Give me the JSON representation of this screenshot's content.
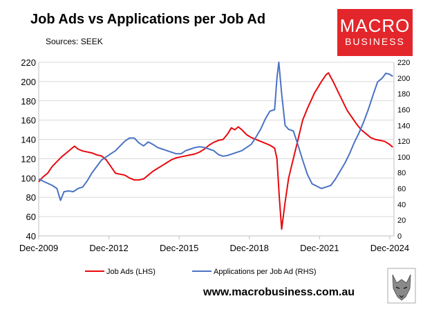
{
  "header": {
    "title": "Job Ads vs Applications per Job Ad",
    "source": "Sources: SEEK"
  },
  "logo": {
    "line1": "MACRO",
    "line2": "BUSINESS"
  },
  "footer": {
    "website": "www.macrobusiness.com.au"
  },
  "colors": {
    "job_ads": "#e8080c",
    "applications": "#4a72c4",
    "grid": "#d9d9d9",
    "logo_bg": "#e3262b"
  },
  "chart_data": {
    "type": "line",
    "x_range": [
      2009.92,
      2025.1
    ],
    "x_tick_labels": [
      "Dec-2009",
      "Dec-2012",
      "Dec-2015",
      "Dec-2018",
      "Dec-2021",
      "Dec-2024"
    ],
    "x_tick_values": [
      2009.92,
      2012.92,
      2015.92,
      2018.92,
      2021.92,
      2024.92
    ],
    "y_left_range": [
      40,
      220
    ],
    "y_left_ticks": [
      40,
      60,
      80,
      100,
      120,
      140,
      160,
      180,
      200,
      220
    ],
    "y_right_range": [
      0,
      220
    ],
    "y_right_ticks": [
      0,
      20,
      40,
      60,
      80,
      100,
      120,
      140,
      160,
      180,
      200,
      220
    ],
    "grid": "horizontal",
    "legend_placement": "bottom",
    "series": [
      {
        "name": "Job Ads (LHS)",
        "axis": "left",
        "points": [
          [
            2009.92,
            96
          ],
          [
            2010.1,
            101
          ],
          [
            2010.3,
            105
          ],
          [
            2010.5,
            112
          ],
          [
            2010.7,
            117
          ],
          [
            2010.9,
            122
          ],
          [
            2011.1,
            126
          ],
          [
            2011.3,
            130
          ],
          [
            2011.45,
            133
          ],
          [
            2011.6,
            130
          ],
          [
            2011.8,
            128
          ],
          [
            2012.0,
            127
          ],
          [
            2012.2,
            126
          ],
          [
            2012.4,
            124
          ],
          [
            2012.6,
            123
          ],
          [
            2012.8,
            119
          ],
          [
            2013.0,
            112
          ],
          [
            2013.2,
            105
          ],
          [
            2013.4,
            104
          ],
          [
            2013.6,
            103
          ],
          [
            2013.8,
            100
          ],
          [
            2014.0,
            98
          ],
          [
            2014.2,
            98
          ],
          [
            2014.4,
            99
          ],
          [
            2014.6,
            103
          ],
          [
            2014.8,
            107
          ],
          [
            2015.0,
            110
          ],
          [
            2015.2,
            113
          ],
          [
            2015.4,
            116
          ],
          [
            2015.6,
            119
          ],
          [
            2015.8,
            121
          ],
          [
            2016.0,
            122
          ],
          [
            2016.2,
            123
          ],
          [
            2016.4,
            124
          ],
          [
            2016.6,
            125
          ],
          [
            2016.8,
            127
          ],
          [
            2017.0,
            130
          ],
          [
            2017.2,
            134
          ],
          [
            2017.4,
            137
          ],
          [
            2017.6,
            139
          ],
          [
            2017.8,
            140
          ],
          [
            2018.0,
            146
          ],
          [
            2018.15,
            152
          ],
          [
            2018.3,
            150
          ],
          [
            2018.45,
            153
          ],
          [
            2018.6,
            150
          ],
          [
            2018.8,
            145
          ],
          [
            2019.0,
            142
          ],
          [
            2019.2,
            140
          ],
          [
            2019.4,
            138
          ],
          [
            2019.6,
            136
          ],
          [
            2019.8,
            134
          ],
          [
            2020.0,
            131
          ],
          [
            2020.1,
            120
          ],
          [
            2020.2,
            80
          ],
          [
            2020.3,
            47
          ],
          [
            2020.45,
            75
          ],
          [
            2020.6,
            100
          ],
          [
            2020.8,
            120
          ],
          [
            2021.0,
            140
          ],
          [
            2021.2,
            160
          ],
          [
            2021.4,
            172
          ],
          [
            2021.55,
            180
          ],
          [
            2021.7,
            188
          ],
          [
            2021.85,
            194
          ],
          [
            2022.0,
            200
          ],
          [
            2022.2,
            207
          ],
          [
            2022.3,
            209
          ],
          [
            2022.5,
            200
          ],
          [
            2022.7,
            190
          ],
          [
            2022.9,
            180
          ],
          [
            2023.1,
            170
          ],
          [
            2023.3,
            163
          ],
          [
            2023.5,
            156
          ],
          [
            2023.7,
            150
          ],
          [
            2023.9,
            146
          ],
          [
            2024.1,
            142
          ],
          [
            2024.3,
            140
          ],
          [
            2024.5,
            139
          ],
          [
            2024.7,
            138
          ],
          [
            2024.9,
            135
          ],
          [
            2025.05,
            132
          ]
        ]
      },
      {
        "name": "Applications per Job Ad (RHS)",
        "axis": "right",
        "points": [
          [
            2009.92,
            72
          ],
          [
            2010.2,
            68
          ],
          [
            2010.5,
            64
          ],
          [
            2010.7,
            60
          ],
          [
            2010.85,
            45
          ],
          [
            2011.0,
            56
          ],
          [
            2011.2,
            57
          ],
          [
            2011.4,
            56
          ],
          [
            2011.6,
            60
          ],
          [
            2011.8,
            62
          ],
          [
            2012.0,
            70
          ],
          [
            2012.2,
            80
          ],
          [
            2012.4,
            88
          ],
          [
            2012.6,
            96
          ],
          [
            2012.8,
            100
          ],
          [
            2013.0,
            104
          ],
          [
            2013.2,
            108
          ],
          [
            2013.4,
            114
          ],
          [
            2013.6,
            120
          ],
          [
            2013.8,
            124
          ],
          [
            2014.0,
            124
          ],
          [
            2014.2,
            118
          ],
          [
            2014.4,
            114
          ],
          [
            2014.6,
            119
          ],
          [
            2014.8,
            116
          ],
          [
            2015.0,
            112
          ],
          [
            2015.2,
            110
          ],
          [
            2015.4,
            108
          ],
          [
            2015.6,
            106
          ],
          [
            2015.8,
            104
          ],
          [
            2016.0,
            104
          ],
          [
            2016.2,
            108
          ],
          [
            2016.4,
            110
          ],
          [
            2016.6,
            112
          ],
          [
            2016.8,
            113
          ],
          [
            2017.0,
            112
          ],
          [
            2017.2,
            110
          ],
          [
            2017.4,
            108
          ],
          [
            2017.6,
            103
          ],
          [
            2017.8,
            101
          ],
          [
            2018.0,
            102
          ],
          [
            2018.2,
            104
          ],
          [
            2018.4,
            106
          ],
          [
            2018.6,
            108
          ],
          [
            2018.8,
            112
          ],
          [
            2019.0,
            116
          ],
          [
            2019.2,
            125
          ],
          [
            2019.4,
            135
          ],
          [
            2019.6,
            148
          ],
          [
            2019.8,
            158
          ],
          [
            2020.0,
            160
          ],
          [
            2020.1,
            200
          ],
          [
            2020.18,
            220
          ],
          [
            2020.3,
            180
          ],
          [
            2020.45,
            140
          ],
          [
            2020.6,
            135
          ],
          [
            2020.8,
            133
          ],
          [
            2021.0,
            115
          ],
          [
            2021.2,
            96
          ],
          [
            2021.4,
            78
          ],
          [
            2021.6,
            66
          ],
          [
            2021.8,
            63
          ],
          [
            2022.0,
            60
          ],
          [
            2022.2,
            62
          ],
          [
            2022.4,
            64
          ],
          [
            2022.6,
            72
          ],
          [
            2022.8,
            82
          ],
          [
            2023.0,
            92
          ],
          [
            2023.2,
            104
          ],
          [
            2023.4,
            118
          ],
          [
            2023.6,
            130
          ],
          [
            2023.8,
            144
          ],
          [
            2024.0,
            160
          ],
          [
            2024.2,
            178
          ],
          [
            2024.4,
            195
          ],
          [
            2024.6,
            200
          ],
          [
            2024.75,
            206
          ],
          [
            2024.9,
            205
          ],
          [
            2025.05,
            202
          ]
        ]
      }
    ]
  }
}
